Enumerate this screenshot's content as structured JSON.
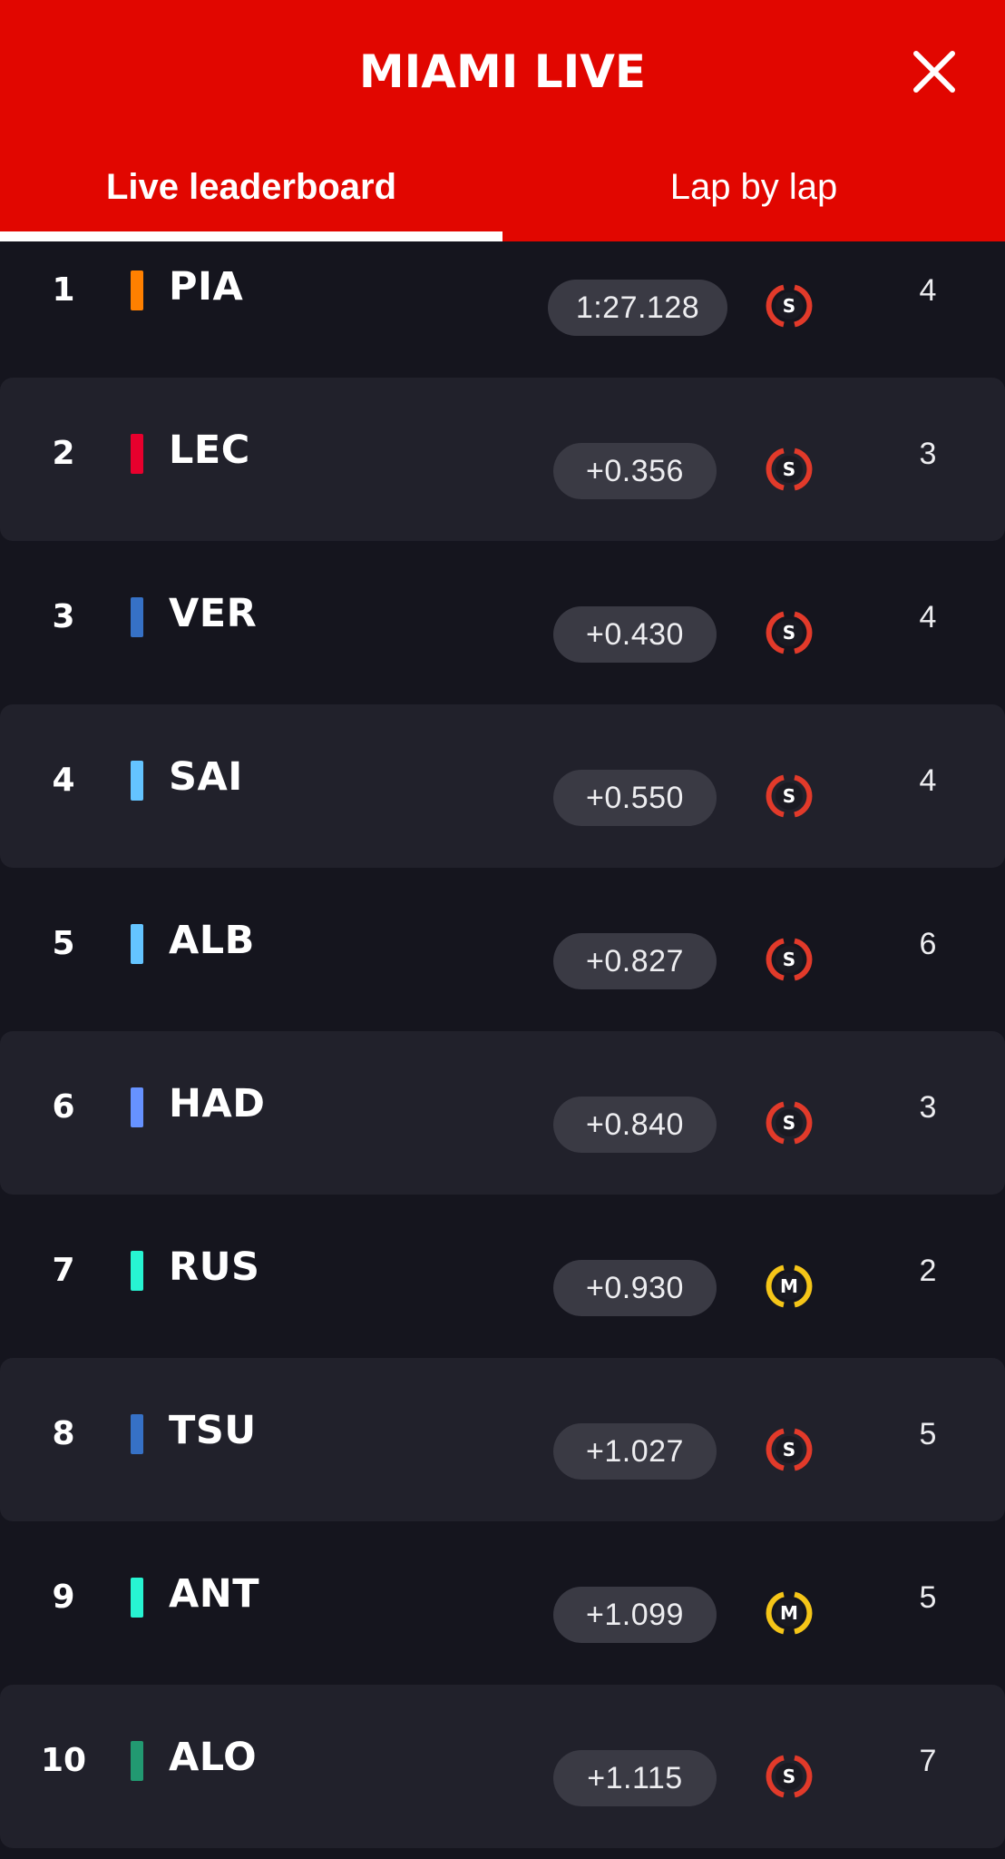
{
  "header": {
    "title": "MIAMI LIVE",
    "close_icon": "close-icon",
    "background": "#e10600"
  },
  "tabs": [
    {
      "label": "Live leaderboard",
      "active": true
    },
    {
      "label": "Lap by lap",
      "active": false
    }
  ],
  "tyre_compounds": {
    "S": {
      "name": "soft",
      "color": "#e23a2a"
    },
    "M": {
      "name": "medium",
      "color": "#f5c518"
    }
  },
  "rows": [
    {
      "pos": "1",
      "code": "PIA",
      "team_color": "#ff8000",
      "gap": "1:27.128",
      "tyre": "S",
      "laps": "4"
    },
    {
      "pos": "2",
      "code": "LEC",
      "team_color": "#e8002d",
      "gap": "+0.356",
      "tyre": "S",
      "laps": "3"
    },
    {
      "pos": "3",
      "code": "VER",
      "team_color": "#3671c6",
      "gap": "+0.430",
      "tyre": "S",
      "laps": "4"
    },
    {
      "pos": "4",
      "code": "SAI",
      "team_color": "#64c4ff",
      "gap": "+0.550",
      "tyre": "S",
      "laps": "4"
    },
    {
      "pos": "5",
      "code": "ALB",
      "team_color": "#64c4ff",
      "gap": "+0.827",
      "tyre": "S",
      "laps": "6"
    },
    {
      "pos": "6",
      "code": "HAD",
      "team_color": "#6692ff",
      "gap": "+0.840",
      "tyre": "S",
      "laps": "3"
    },
    {
      "pos": "7",
      "code": "RUS",
      "team_color": "#27f4d2",
      "gap": "+0.930",
      "tyre": "M",
      "laps": "2"
    },
    {
      "pos": "8",
      "code": "TSU",
      "team_color": "#3671c6",
      "gap": "+1.027",
      "tyre": "S",
      "laps": "5"
    },
    {
      "pos": "9",
      "code": "ANT",
      "team_color": "#27f4d2",
      "gap": "+1.099",
      "tyre": "M",
      "laps": "5"
    },
    {
      "pos": "10",
      "code": "ALO",
      "team_color": "#229971",
      "gap": "+1.115",
      "tyre": "S",
      "laps": "7"
    }
  ]
}
